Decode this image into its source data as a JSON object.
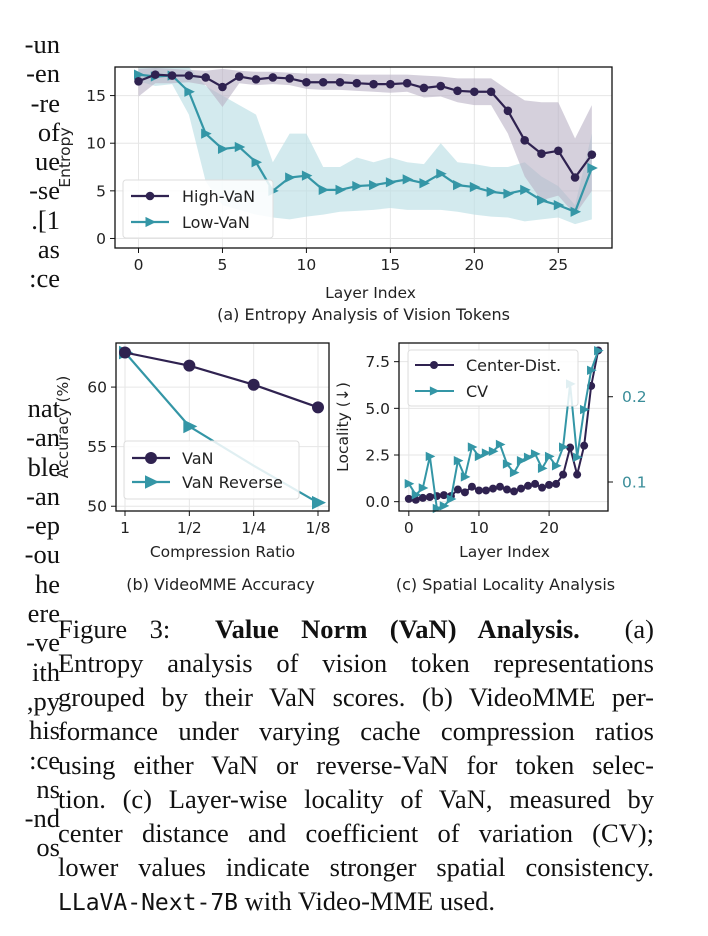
{
  "left_margin_text": {
    "block1": [
      "un-",
      "en-",
      "re-",
      "of",
      "ue",
      "se-",
      "1].",
      "as",
      "ce:"
    ],
    "block2": [
      "nat",
      "an-",
      "ble",
      "an-",
      "ep-",
      "ou-",
      "he",
      "ere",
      "ve-",
      "ith",
      "py,",
      "his",
      "ce:",
      "ns",
      "nd-",
      "os"
    ]
  },
  "colors": {
    "high": "#2f2250",
    "low": "#3496a6",
    "high_band": "#b9b1c4",
    "low_band": "#bcdfe5",
    "grid": "#e6e6e6",
    "right_axis": "#3a8d99"
  },
  "chart_data": [
    {
      "id": "a",
      "type": "line",
      "title": "(a) Entropy Analysis of Vision Tokens",
      "xlabel": "Layer Index",
      "ylabel": "Entropy",
      "xlim": [
        -1.4,
        28.2
      ],
      "ylim": [
        -1,
        18
      ],
      "xticks": [
        0,
        5,
        10,
        15,
        20,
        25
      ],
      "yticks": [
        0,
        5,
        10,
        15
      ],
      "grid": true,
      "legend_position": "lower-left",
      "x": [
        0,
        1,
        2,
        3,
        4,
        5,
        6,
        7,
        8,
        9,
        10,
        11,
        12,
        13,
        14,
        15,
        16,
        17,
        18,
        19,
        20,
        21,
        22,
        23,
        24,
        25,
        26,
        27
      ],
      "series": [
        {
          "name": "High-VaN",
          "marker": "circle",
          "values": [
            16.5,
            17.2,
            17.1,
            17.1,
            16.9,
            15.9,
            17.0,
            16.7,
            16.9,
            16.8,
            16.4,
            16.4,
            16.4,
            16.3,
            16.2,
            16.2,
            16.3,
            15.8,
            16.0,
            15.5,
            15.4,
            15.4,
            13.4,
            10.3,
            8.9,
            9.2,
            6.4,
            8.8
          ],
          "band_upper": [
            17.8,
            17.9,
            17.8,
            17.7,
            17.6,
            17.8,
            17.6,
            17.5,
            17.5,
            17.4,
            17.3,
            17.3,
            17.3,
            17.2,
            17.2,
            17.2,
            17.2,
            17.1,
            17.0,
            16.8,
            16.8,
            16.8,
            15.6,
            14.5,
            14.3,
            14.3,
            10.5,
            14.0
          ],
          "band_lower": [
            14.9,
            16.3,
            16.3,
            16.4,
            16.1,
            13.8,
            16.3,
            16.1,
            16.2,
            16.1,
            15.7,
            15.6,
            15.6,
            15.5,
            15.4,
            15.3,
            15.4,
            14.8,
            14.9,
            14.3,
            14.0,
            14.0,
            11.0,
            6.5,
            4.0,
            4.5,
            2.5,
            5.0
          ]
        },
        {
          "name": "Low-VaN",
          "marker": "triangle-right",
          "values": [
            17.2,
            17.0,
            17.1,
            15.4,
            11.0,
            9.4,
            9.6,
            8.0,
            5.0,
            6.4,
            6.6,
            5.1,
            5.1,
            5.5,
            5.6,
            5.9,
            6.2,
            5.8,
            6.8,
            5.6,
            5.4,
            4.9,
            4.7,
            5.1,
            4.0,
            3.5,
            2.8,
            7.4
          ],
          "band_upper": [
            18.0,
            18.0,
            18.0,
            18.0,
            16.0,
            15.0,
            14.0,
            13.0,
            8.0,
            11.0,
            11.0,
            7.5,
            7.5,
            8.5,
            8.0,
            8.5,
            8.0,
            7.8,
            10.0,
            8.0,
            7.8,
            7.5,
            7.5,
            8.0,
            6.5,
            5.5,
            3.5,
            11.0
          ],
          "band_lower": [
            16.5,
            16.0,
            16.2,
            13.0,
            6.0,
            3.5,
            3.0,
            2.5,
            2.2,
            2.0,
            2.3,
            2.5,
            2.8,
            2.9,
            3.0,
            3.2,
            3.0,
            3.0,
            3.0,
            2.8,
            2.5,
            2.3,
            2.2,
            1.8,
            2.0,
            2.2,
            1.5,
            2.0
          ]
        }
      ]
    },
    {
      "id": "b",
      "type": "line",
      "title": "(b) VideoMME Accuracy",
      "xlabel": "Compression Ratio",
      "ylabel": "Accuracy (%)",
      "categories": [
        "1",
        "1/2",
        "1/4",
        "1/8"
      ],
      "ylim": [
        49.6,
        63.7
      ],
      "yticks": [
        50,
        55,
        60
      ],
      "grid": true,
      "legend_position": "lower-left",
      "series": [
        {
          "name": "VaN",
          "marker": "circle",
          "values": [
            62.9,
            61.8,
            60.2,
            58.3
          ]
        },
        {
          "name": "VaN Reverse",
          "marker": "triangle-right",
          "values": [
            62.9,
            56.7,
            53.4,
            50.3
          ]
        }
      ]
    },
    {
      "id": "c",
      "type": "line",
      "title": "(c) Spatial Locality Analysis",
      "xlabel": "Layer Index",
      "ylabel": "Locality (↓)",
      "xlim": [
        -1.4,
        28.4
      ],
      "ylim": [
        -0.5,
        8.5
      ],
      "xticks": [
        0,
        10,
        20
      ],
      "yticks": [
        0.0,
        2.5,
        5.0,
        7.5
      ],
      "ytick_labels": [
        "0.0",
        "2.5",
        "5.0",
        "7.5"
      ],
      "right_ylim": [
        0.066,
        0.263
      ],
      "right_yticks": [
        0.1,
        0.2
      ],
      "right_ytick_labels": [
        "0.1",
        "0.2"
      ],
      "grid": true,
      "legend_position": "upper-left",
      "x": [
        0,
        1,
        2,
        3,
        4,
        5,
        6,
        7,
        8,
        9,
        10,
        11,
        12,
        13,
        14,
        15,
        16,
        17,
        18,
        19,
        20,
        21,
        22,
        23,
        24,
        25,
        26,
        27
      ],
      "series": [
        {
          "name": "Center-Dist.",
          "axis": "left",
          "marker": "circle",
          "values": [
            0.15,
            0.1,
            0.2,
            0.25,
            0.3,
            0.35,
            0.3,
            0.65,
            0.5,
            0.8,
            0.6,
            0.6,
            0.7,
            0.8,
            0.65,
            0.55,
            0.7,
            0.85,
            0.95,
            0.75,
            0.9,
            0.95,
            1.45,
            2.9,
            1.45,
            3.0,
            6.2,
            8.1
          ]
        },
        {
          "name": "CV",
          "axis": "right",
          "marker": "triangle-right",
          "values": [
            0.098,
            0.085,
            0.093,
            0.13,
            0.069,
            0.072,
            0.08,
            0.125,
            0.106,
            0.141,
            0.13,
            0.134,
            0.136,
            0.144,
            0.121,
            0.111,
            0.125,
            0.129,
            0.133,
            0.116,
            0.13,
            0.119,
            0.141,
            0.215,
            0.129,
            0.185,
            0.231,
            0.254
          ]
        }
      ]
    }
  ],
  "caption": {
    "label": "Figure 3:",
    "bold_title": "Value Norm (VaN) Analysis.",
    "lines": [
      "(a)",
      "Entropy analysis of vision token representations",
      "grouped by their VaN scores. (b) VideoMME per-",
      "formance under varying cache compression ratios",
      "using either VaN or reverse-VaN for token selec-",
      "tion. (c) Layer-wise locality of VaN, measured by",
      "center distance and coefficient of variation (CV);",
      "lower values indicate stronger spatial consistency."
    ],
    "model_name": "LLaVA-Next-7B",
    "final_suffix": " with Video-MME used."
  }
}
